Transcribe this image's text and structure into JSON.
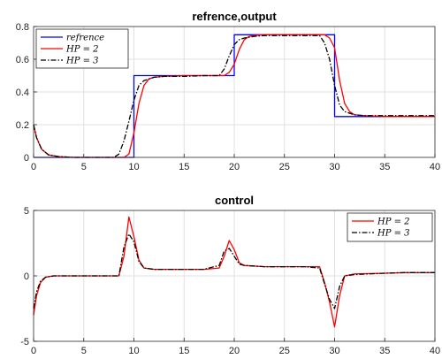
{
  "chart_data": [
    {
      "type": "line",
      "title": "refrence,output",
      "xlabel": "",
      "ylabel": "",
      "xlim": [
        0,
        40
      ],
      "ylim": [
        0,
        0.8
      ],
      "xticks": [
        0,
        5,
        10,
        15,
        20,
        25,
        30,
        35,
        40
      ],
      "yticks": [
        0,
        0.2,
        0.4,
        0.6,
        0.8
      ],
      "grid": true,
      "legend": "top-left",
      "series": [
        {
          "name": "refrence",
          "color": "#0000ff",
          "style": "solid",
          "x": [
            0,
            10,
            10,
            20,
            20,
            30,
            30,
            40
          ],
          "y": [
            0,
            0,
            0.5,
            0.5,
            0.75,
            0.75,
            0.25,
            0.25
          ]
        },
        {
          "name": "HP = 2",
          "color": "#ff0000",
          "style": "solid",
          "x": [
            0,
            0.3,
            0.8,
            1.5,
            2.5,
            4,
            6,
            8,
            9,
            9.5,
            10,
            10.5,
            11,
            11.5,
            12,
            13,
            15,
            17,
            19,
            19.5,
            20,
            20.5,
            21,
            21.5,
            22,
            23,
            25,
            27,
            29,
            29.5,
            30,
            30.5,
            31,
            31.5,
            32,
            33,
            35,
            37,
            40
          ],
          "y": [
            0.2,
            0.12,
            0.05,
            0.015,
            0.005,
            0,
            0,
            0,
            0,
            0.02,
            0.15,
            0.33,
            0.44,
            0.48,
            0.49,
            0.495,
            0.5,
            0.5,
            0.5,
            0.52,
            0.57,
            0.66,
            0.72,
            0.74,
            0.745,
            0.75,
            0.75,
            0.75,
            0.75,
            0.73,
            0.67,
            0.47,
            0.33,
            0.28,
            0.26,
            0.255,
            0.25,
            0.25,
            0.25
          ]
        },
        {
          "name": "HP = 3",
          "color": "#000000",
          "style": "dashdot",
          "x": [
            0,
            0.3,
            0.8,
            1.5,
            2.5,
            4,
            6,
            8,
            8.5,
            9,
            9.5,
            10,
            10.5,
            11,
            12,
            13,
            15,
            17,
            18.5,
            19,
            19.5,
            20,
            20.5,
            21,
            22,
            23,
            25,
            27,
            28.5,
            29,
            29.5,
            30,
            30.5,
            31,
            32,
            33,
            35,
            37,
            40
          ],
          "y": [
            0.2,
            0.12,
            0.05,
            0.015,
            0.005,
            0,
            0,
            0,
            0.02,
            0.1,
            0.22,
            0.35,
            0.44,
            0.47,
            0.49,
            0.495,
            0.495,
            0.5,
            0.5,
            0.54,
            0.62,
            0.69,
            0.72,
            0.73,
            0.74,
            0.745,
            0.745,
            0.745,
            0.745,
            0.7,
            0.6,
            0.44,
            0.32,
            0.28,
            0.26,
            0.255,
            0.255,
            0.255,
            0.255
          ]
        }
      ]
    },
    {
      "type": "line",
      "title": "control",
      "xlabel": "",
      "ylabel": "",
      "xlim": [
        0,
        40
      ],
      "ylim": [
        -5,
        5
      ],
      "xticks": [
        0,
        5,
        10,
        15,
        20,
        25,
        30,
        35,
        40
      ],
      "yticks": [
        -5,
        0,
        5
      ],
      "grid": true,
      "legend": "top-right",
      "series": [
        {
          "name": "HP = 2",
          "color": "#ff0000",
          "style": "solid",
          "x": [
            0,
            0.3,
            0.7,
            1.2,
            2,
            3,
            5,
            7,
            8.5,
            9,
            9.5,
            10,
            10.5,
            11,
            12,
            13,
            15,
            17,
            18.5,
            19,
            19.5,
            20,
            20.5,
            21,
            23,
            25,
            27,
            28.5,
            29,
            29.5,
            30,
            30.5,
            31,
            32,
            35,
            37,
            40
          ],
          "y": [
            -3,
            -1.5,
            -0.5,
            -0.1,
            0,
            0,
            0,
            0,
            0,
            1.5,
            4.5,
            3,
            1.2,
            0.6,
            0.5,
            0.5,
            0.5,
            0.5,
            0.6,
            1.5,
            2.7,
            2,
            1,
            0.8,
            0.7,
            0.7,
            0.7,
            0.7,
            -0.5,
            -2,
            -3.9,
            -1.5,
            0,
            0.15,
            0.2,
            0.25,
            0.25
          ]
        },
        {
          "name": "HP = 3",
          "color": "#000000",
          "style": "dashdot",
          "x": [
            0,
            0.3,
            0.7,
            1.2,
            2,
            3,
            5,
            7,
            8.5,
            9,
            9.5,
            10,
            10.5,
            11,
            12,
            13,
            15,
            17,
            18.5,
            19,
            19.5,
            20,
            20.5,
            21,
            23,
            25,
            27,
            28.5,
            29,
            29.5,
            30,
            30.5,
            31,
            32,
            35,
            37,
            40
          ],
          "y": [
            -2.5,
            -1.2,
            -0.4,
            -0.1,
            0,
            0,
            0,
            0,
            0,
            2.2,
            3.2,
            2.6,
            1.1,
            0.6,
            0.5,
            0.5,
            0.5,
            0.5,
            0.8,
            1.9,
            2.1,
            1.5,
            0.9,
            0.8,
            0.7,
            0.7,
            0.7,
            0.6,
            -0.6,
            -1.8,
            -2.5,
            -0.8,
            0,
            0.1,
            0.2,
            0.25,
            0.25
          ]
        }
      ]
    }
  ]
}
